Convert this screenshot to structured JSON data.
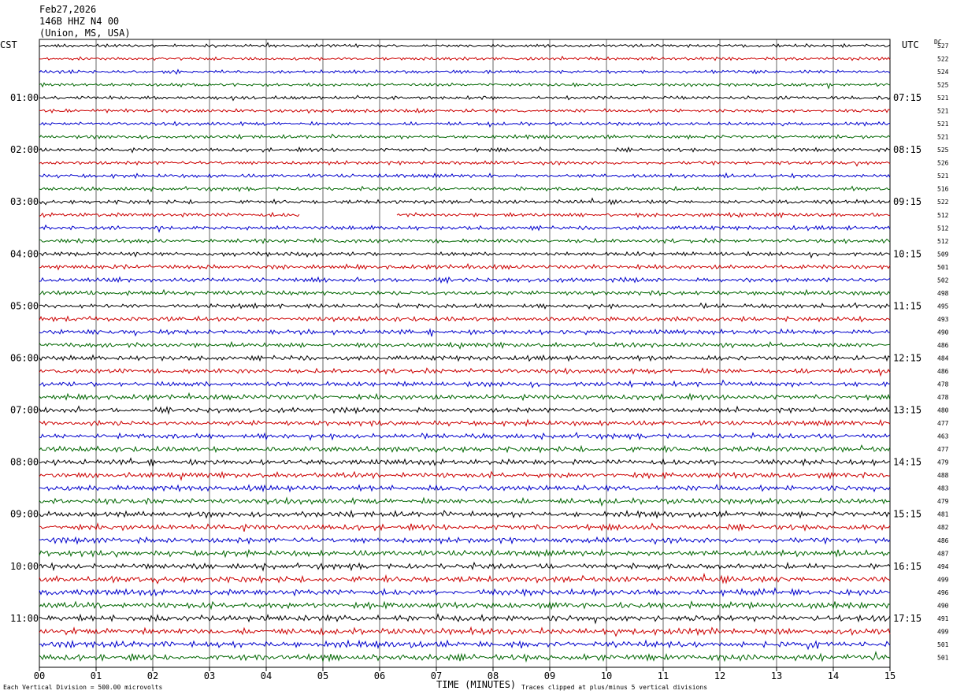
{
  "header": {
    "date": "Feb27,2026",
    "station": "146B HHZ N4 00",
    "location": "(Union, MS, USA)"
  },
  "left_label": "CST",
  "right_label": "UTC",
  "dc_label": "DC",
  "footer": {
    "scale": "Each Vertical Division =  500.00 microvolts",
    "clip": "Traces clipped at plus/minus 5 vertical divisions"
  },
  "colors": {
    "trace": [
      "#000000",
      "#cc0000",
      "#0000cc",
      "#006600"
    ],
    "grid": "#000000"
  },
  "chart_data": {
    "type": "line",
    "xlabel": "TIME (MINUTES)",
    "xlim": [
      0,
      15
    ],
    "x_ticks": [
      "00",
      "01",
      "02",
      "03",
      "04",
      "05",
      "06",
      "07",
      "08",
      "09",
      "10",
      "11",
      "12",
      "13",
      "14",
      "15"
    ],
    "left_times": [
      "01:00",
      "02:00",
      "03:00",
      "04:00",
      "05:00",
      "06:00",
      "07:00",
      "08:00",
      "09:00",
      "10:00",
      "11:00"
    ],
    "right_times": [
      "07:15",
      "08:15",
      "09:15",
      "10:15",
      "11:15",
      "12:15",
      "13:15",
      "14:15",
      "15:15",
      "16:15",
      "17:15"
    ],
    "dc_offsets": [
      527,
      522,
      524,
      525,
      521,
      521,
      521,
      521,
      525,
      526,
      521,
      516,
      522,
      512,
      512,
      512,
      509,
      501,
      502,
      498,
      495,
      493,
      490,
      486,
      484,
      486,
      478,
      478,
      480,
      477,
      463,
      477,
      479,
      488,
      483,
      479,
      481,
      482,
      486,
      487,
      494,
      499,
      496,
      490,
      491,
      499,
      501,
      501
    ],
    "gap": {
      "line": 13,
      "start_min": 4.6,
      "end_min": 6.3
    }
  }
}
